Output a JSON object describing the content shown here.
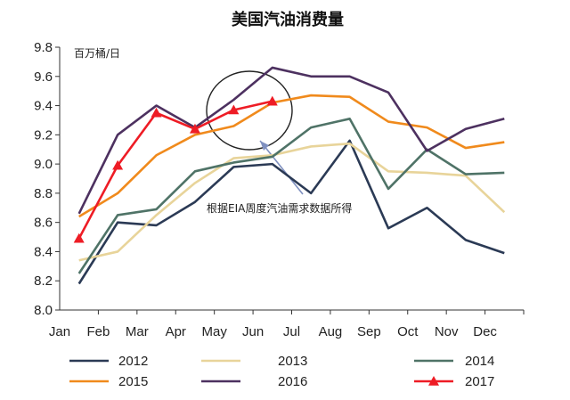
{
  "chart_data": {
    "type": "line",
    "title": "美国汽油消费量",
    "unit_label": "百万桶/日",
    "xlabel": "",
    "ylabel": "",
    "categories": [
      "Jan",
      "Feb",
      "Mar",
      "Apr",
      "May",
      "Jun",
      "Jul",
      "Aug",
      "Sep",
      "Oct",
      "Nov",
      "Dec"
    ],
    "ylim": [
      8.0,
      9.8
    ],
    "y_ticks": [
      "8.0",
      "8.2",
      "8.4",
      "8.6",
      "8.8",
      "9.0",
      "9.2",
      "9.4",
      "9.6",
      "9.8"
    ],
    "grid": false,
    "legend_position": "bottom",
    "series": [
      {
        "name": "2012",
        "color": "#2b3a55",
        "marker": "none",
        "values": [
          8.18,
          8.6,
          8.58,
          8.74,
          8.98,
          9.0,
          8.8,
          9.16,
          8.56,
          8.7,
          8.48,
          8.39
        ]
      },
      {
        "name": "2013",
        "color": "#e8d49a",
        "marker": "none",
        "values": [
          8.34,
          8.4,
          8.65,
          8.87,
          9.04,
          9.06,
          9.12,
          9.14,
          8.95,
          8.94,
          8.92,
          8.67
        ]
      },
      {
        "name": "2014",
        "color": "#4f7367",
        "marker": "none",
        "values": [
          8.25,
          8.65,
          8.69,
          8.95,
          9.01,
          9.05,
          9.25,
          9.31,
          8.83,
          9.1,
          8.93,
          8.94
        ]
      },
      {
        "name": "2015",
        "color": "#f08a1c",
        "marker": "none",
        "values": [
          8.64,
          8.8,
          9.06,
          9.2,
          9.26,
          9.42,
          9.47,
          9.46,
          9.29,
          9.25,
          9.11,
          9.15
        ]
      },
      {
        "name": "2016",
        "color": "#4d3160",
        "marker": "none",
        "values": [
          8.66,
          9.2,
          9.4,
          9.25,
          9.44,
          9.66,
          9.6,
          9.6,
          9.49,
          9.09,
          9.24,
          9.31
        ]
      },
      {
        "name": "2017",
        "color": "#ee1c25",
        "marker": "triangle",
        "values": [
          8.49,
          8.99,
          9.35,
          9.24,
          9.37,
          9.43,
          null,
          null,
          null,
          null,
          null,
          null
        ]
      }
    ],
    "annotation": {
      "text": "根据EIA周度汽油需求数据所得",
      "arrow_color": "#7f90c0",
      "circle_color": "#222222"
    }
  }
}
